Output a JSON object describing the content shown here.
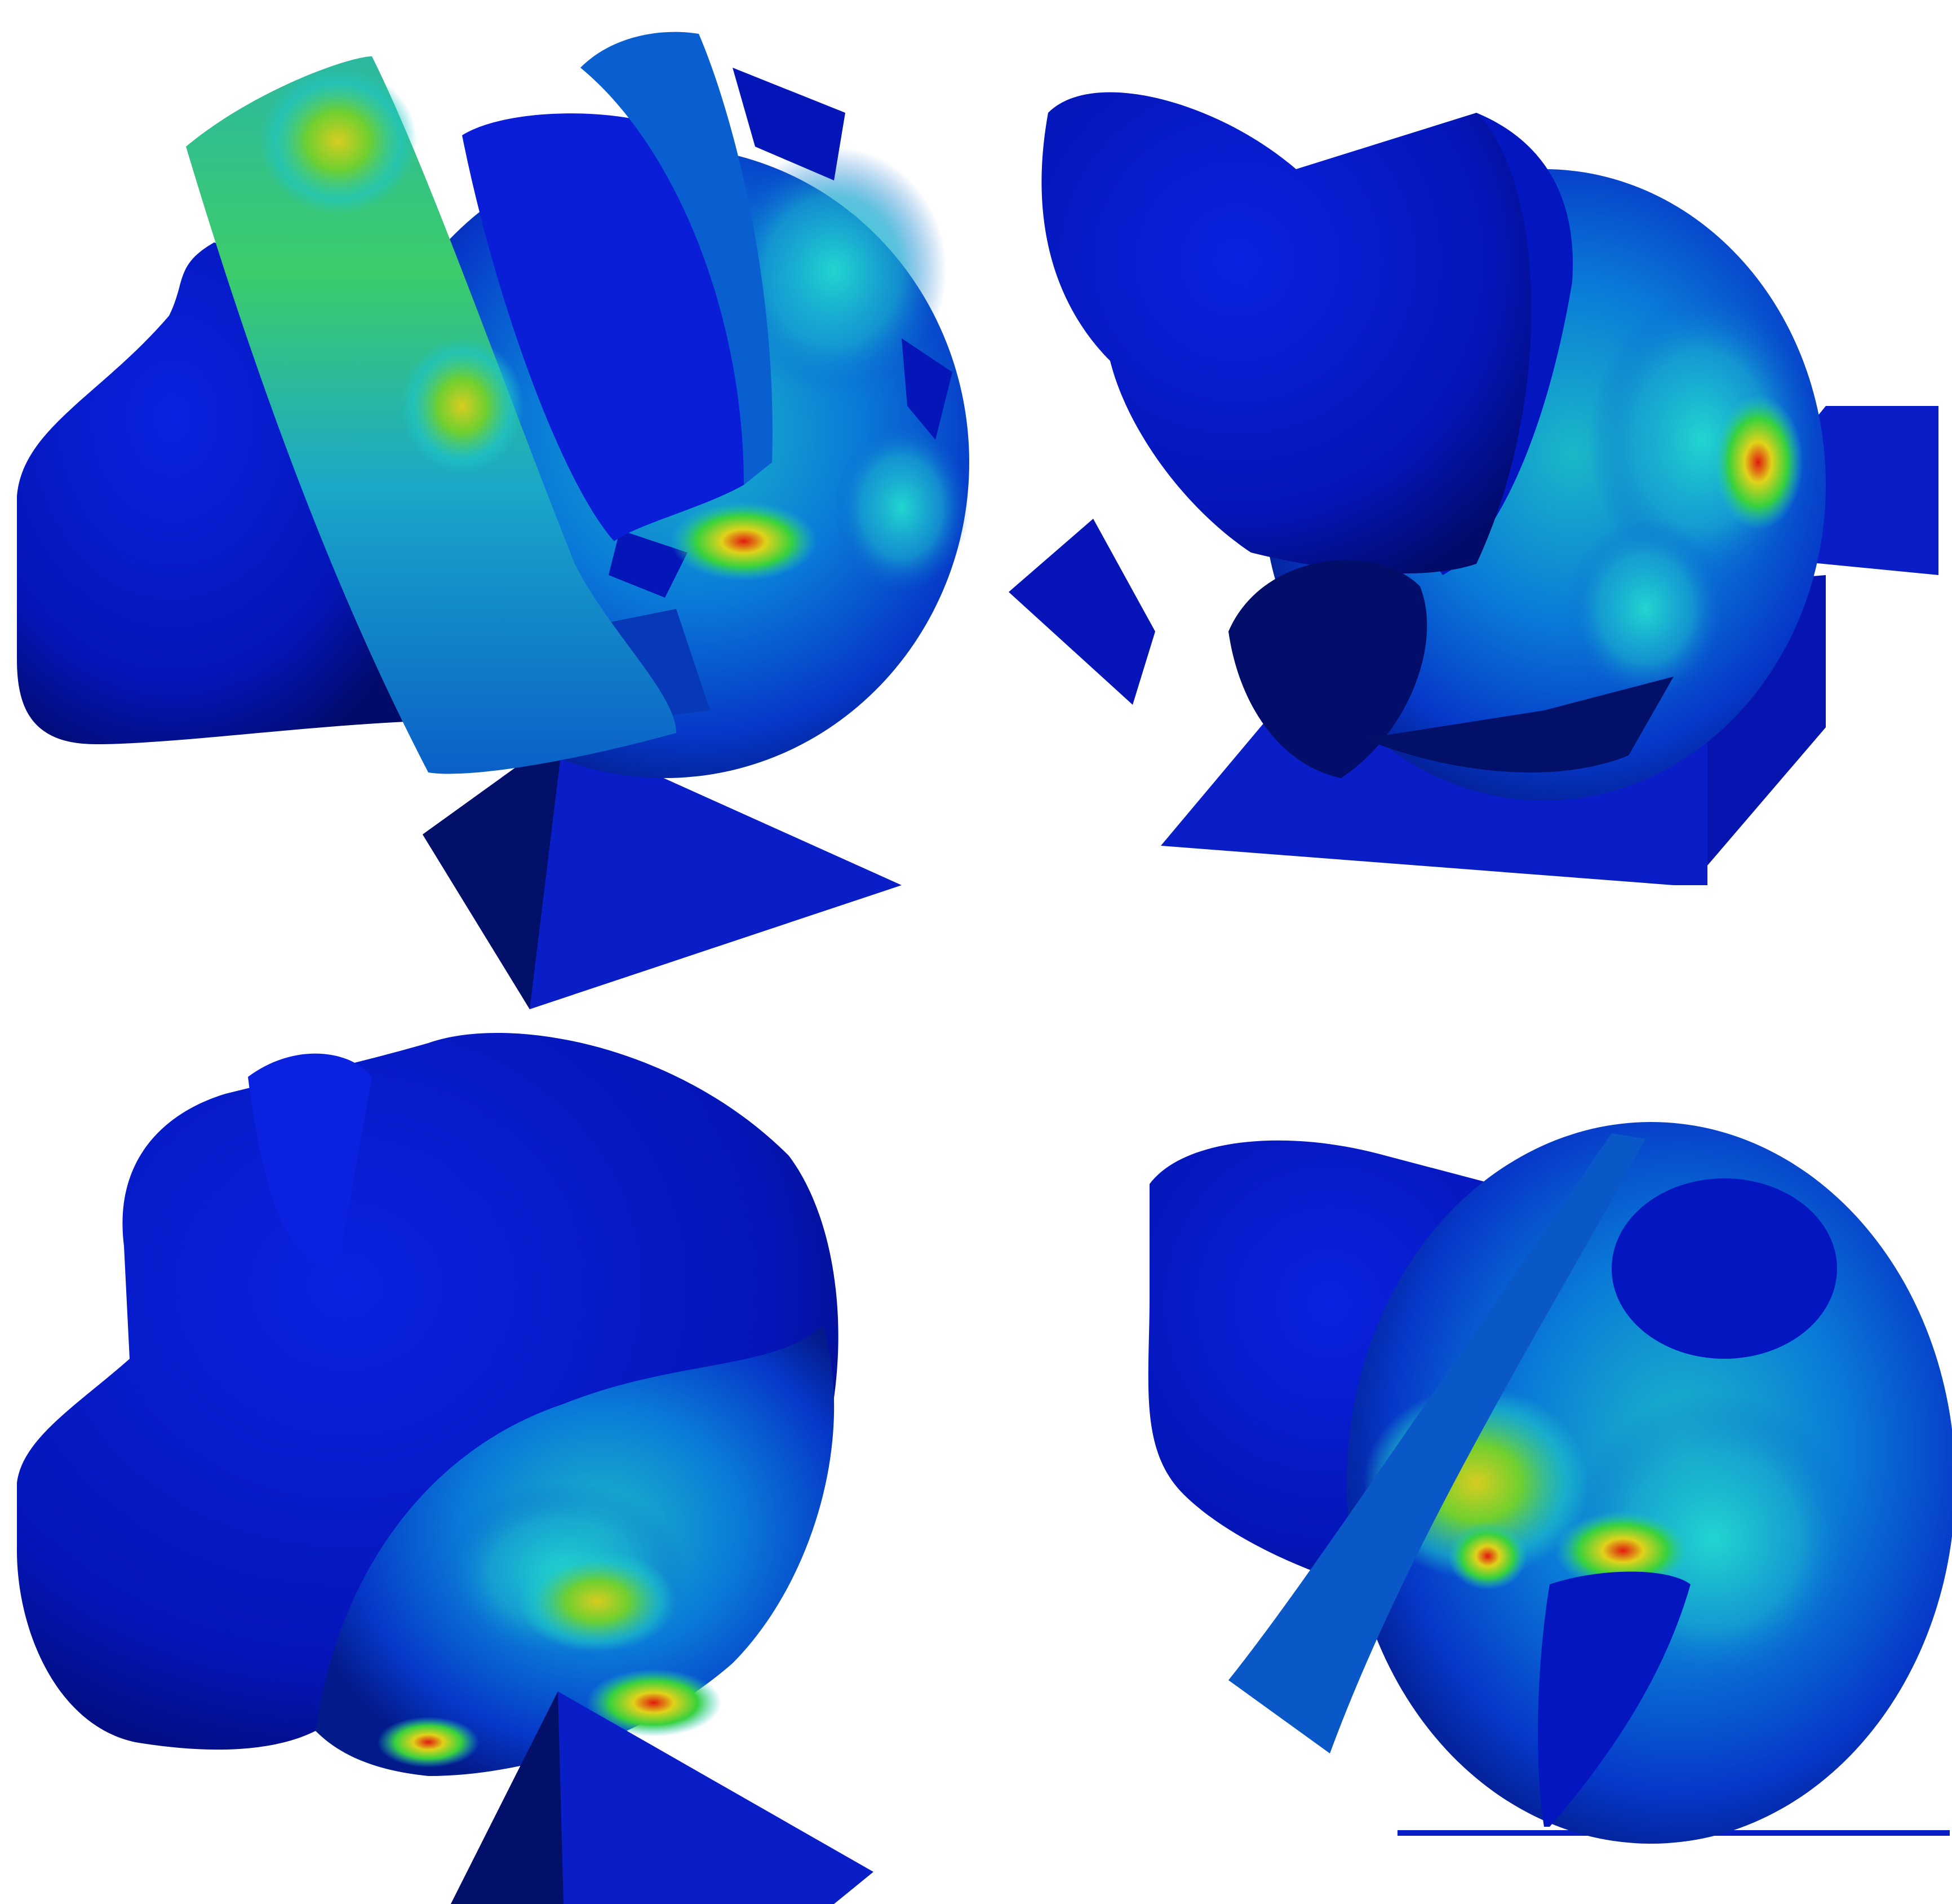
{
  "figure": {
    "panels": [
      {
        "id": "top-left",
        "part": "femoral-head-with-anterior-band",
        "contact_support": "pyramid"
      },
      {
        "id": "top-right",
        "part": "femoral-head-with-step-support",
        "contact_support": "l-bracket"
      },
      {
        "id": "bottom-left",
        "part": "femoral-head-side-view",
        "contact_support": "pyramid"
      },
      {
        "id": "bottom-right",
        "part": "femoral-head-with-cut-band",
        "contact_support": "flat-plate"
      }
    ],
    "colormap": {
      "low": "#0013c8",
      "low_mid": "#0a5fd0",
      "mid": "#1ec6c8",
      "mid_high": "#38d23c",
      "high": "#e0d21a",
      "peak": "#e01a10"
    },
    "background": "#ffffff"
  }
}
